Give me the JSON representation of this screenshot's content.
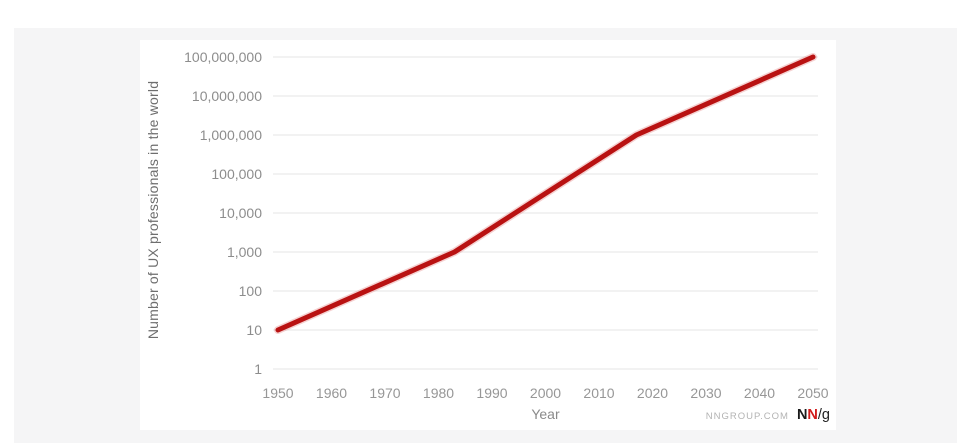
{
  "page": {
    "background_color": "#ffffff",
    "panel_color": "#f5f5f6",
    "card_color": "#ffffff"
  },
  "footer": {
    "site": "NNGROUP.COM",
    "logo": {
      "n1": "N",
      "n2": "N",
      "rest": "/g"
    },
    "logo_red": "#d11a1a",
    "logo_black": "#1a1a1a"
  },
  "chart_data": {
    "type": "line",
    "title": "",
    "xlabel": "Year",
    "ylabel": "Number of UX professionals in the world",
    "x_ticks": [
      "1950",
      "1960",
      "1970",
      "1980",
      "1990",
      "2000",
      "2010",
      "2020",
      "2030",
      "2040",
      "2050"
    ],
    "y_ticks": [
      "100,000,000",
      "10,000,000",
      "1,000,000",
      "100,000",
      "10,000",
      "1,000",
      "100",
      "10",
      "1"
    ],
    "y_scale": "log",
    "x_range": [
      1950,
      2050
    ],
    "y_range": [
      1,
      100000000
    ],
    "grid": "horizontal-only",
    "grid_color": "#e9e9e9",
    "legend": "none",
    "series": [
      {
        "name": "Number of UX professionals",
        "color": "#b91212",
        "halo_color": "#e89a9a",
        "points": [
          {
            "year": 1950,
            "value": 10
          },
          {
            "year": 1983,
            "value": 1000
          },
          {
            "year": 2017,
            "value": 1000000
          },
          {
            "year": 2050,
            "value": 100000000
          }
        ]
      }
    ]
  }
}
